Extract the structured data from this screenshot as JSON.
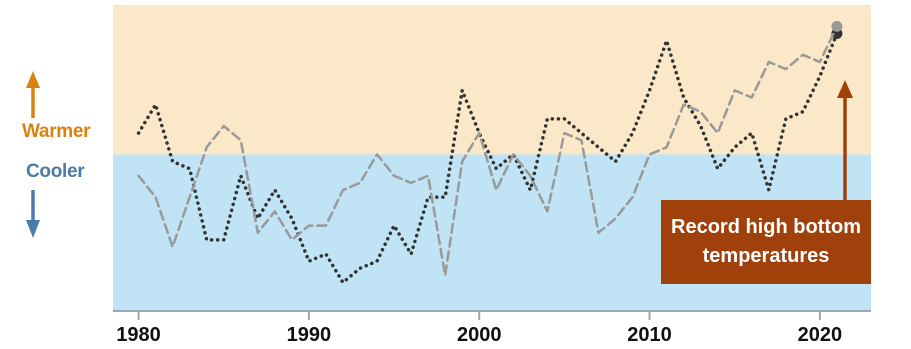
{
  "colors": {
    "warm_band": "#fbe8c8",
    "cool_band": "#c0e3f5",
    "warm": "#d9820f",
    "cool": "#4a7ca8",
    "callout": "#a0400b",
    "axis": "#9aa7b0",
    "series_dotted": "#333333",
    "series_dashed": "#999999"
  },
  "labels": {
    "warmer": "Warmer",
    "cooler": "Cooler"
  },
  "callout": {
    "line1": "Record high bottom",
    "line2": "temperatures"
  },
  "chart_data": {
    "type": "line",
    "xlim": [
      1978.5,
      2023
    ],
    "ylim": [
      -2.2,
      2.1
    ],
    "x_ticks": [
      1980,
      1990,
      2000,
      2010,
      2020
    ],
    "baseline": 0,
    "series": [
      {
        "style": "dotted",
        "x": [
          1980,
          1981,
          1982,
          1983,
          1984,
          1985,
          1986,
          1987,
          1988,
          1989,
          1990,
          1991,
          1992,
          1993,
          1994,
          1995,
          1996,
          1997,
          1998,
          1999,
          2000,
          2001,
          2002,
          2003,
          2004,
          2005,
          2006,
          2007,
          2008,
          2009,
          2010,
          2011,
          2012,
          2013,
          2014,
          2015,
          2016,
          2017,
          2018,
          2019,
          2020,
          2021
        ],
        "y": [
          0.3,
          0.7,
          -0.1,
          -0.2,
          -1.2,
          -1.2,
          -0.3,
          -0.9,
          -0.5,
          -0.9,
          -1.5,
          -1.4,
          -1.8,
          -1.6,
          -1.5,
          -1.0,
          -1.4,
          -0.6,
          -0.6,
          0.9,
          0.3,
          -0.2,
          0.0,
          -0.5,
          0.5,
          0.5,
          0.3,
          0.1,
          -0.1,
          0.3,
          0.9,
          1.6,
          0.8,
          0.4,
          -0.2,
          0.1,
          0.3,
          -0.5,
          0.5,
          0.6,
          1.1,
          1.7
        ]
      },
      {
        "style": "dashed",
        "x": [
          1980,
          1981,
          1982,
          1983,
          1984,
          1985,
          1986,
          1987,
          1988,
          1989,
          1990,
          1991,
          1992,
          1993,
          1994,
          1995,
          1996,
          1997,
          1998,
          1999,
          2000,
          2001,
          2002,
          2003,
          2004,
          2005,
          2006,
          2007,
          2008,
          2009,
          2010,
          2011,
          2012,
          2013,
          2014,
          2015,
          2016,
          2017,
          2018,
          2019,
          2020,
          2021
        ],
        "y": [
          -0.3,
          -0.6,
          -1.3,
          -0.6,
          0.1,
          0.4,
          0.2,
          -1.1,
          -0.8,
          -1.2,
          -1.0,
          -1.0,
          -0.5,
          -0.4,
          0.0,
          -0.3,
          -0.4,
          -0.3,
          -1.7,
          -0.1,
          0.3,
          -0.5,
          0.0,
          -0.3,
          -0.8,
          0.3,
          0.2,
          -1.1,
          -0.9,
          -0.6,
          0.0,
          0.1,
          0.7,
          0.6,
          0.3,
          0.9,
          0.8,
          1.3,
          1.2,
          1.4,
          1.3,
          1.8
        ]
      }
    ]
  }
}
